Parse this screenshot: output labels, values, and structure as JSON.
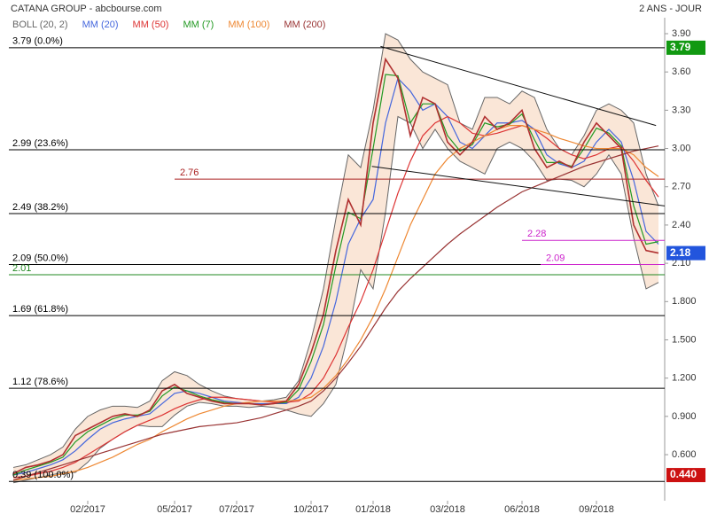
{
  "chart_data": {
    "type": "line",
    "title": "CATANA GROUP - abcbourse.com",
    "subtitle": "2 ANS - JOUR",
    "categories": [
      null,
      null,
      null,
      null,
      null,
      null,
      "02/2017",
      null,
      null,
      null,
      null,
      null,
      null,
      "05/2017",
      null,
      null,
      null,
      null,
      "07/2017",
      null,
      null,
      null,
      null,
      null,
      "10/2017",
      null,
      null,
      null,
      null,
      "01/2018",
      null,
      null,
      null,
      null,
      null,
      "03/2018",
      null,
      null,
      null,
      null,
      null,
      "06/2018",
      null,
      null,
      null,
      null,
      null,
      "09/2018",
      null,
      null,
      null,
      null,
      null
    ],
    "values": [
      0.45,
      0.5,
      0.52,
      0.55,
      0.6,
      0.75,
      0.8,
      0.85,
      0.9,
      0.92,
      0.9,
      0.95,
      1.1,
      1.15,
      1.08,
      1.05,
      1.02,
      1.0,
      1.0,
      1.0,
      0.99,
      1.0,
      1.02,
      1.15,
      1.4,
      1.7,
      2.2,
      2.6,
      2.4,
      3.2,
      3.7,
      3.55,
      3.1,
      3.4,
      3.35,
      3.05,
      2.95,
      3.05,
      3.25,
      3.15,
      3.2,
      3.3,
      3.0,
      2.85,
      2.9,
      2.85,
      3.05,
      3.2,
      3.1,
      3.0,
      2.4,
      2.2,
      2.18
    ],
    "color": "#b03030",
    "series": [
      {
        "name": "BOLL (20, 2)",
        "color": "#666666",
        "values": [
          0.5,
          0.52,
          0.56,
          0.6,
          0.66,
          0.8,
          0.9,
          0.95,
          0.98,
          0.98,
          0.97,
          1.02,
          1.18,
          1.25,
          1.22,
          1.15,
          1.1,
          1.06,
          1.04,
          1.03,
          1.02,
          1.03,
          1.05,
          1.18,
          1.5,
          1.9,
          2.45,
          2.95,
          2.85,
          3.3,
          3.9,
          3.85,
          3.7,
          3.6,
          3.55,
          3.5,
          3.2,
          3.15,
          3.4,
          3.4,
          3.35,
          3.45,
          3.4,
          3.15,
          3.0,
          2.95,
          3.1,
          3.3,
          3.35,
          3.3,
          3.2,
          2.8,
          2.55
        ],
        "lower": [
          0.38,
          0.4,
          0.42,
          0.44,
          0.46,
          0.46,
          0.54,
          0.65,
          0.72,
          0.78,
          0.83,
          0.82,
          0.82,
          0.91,
          0.98,
          1.01,
          1.0,
          0.98,
          0.98,
          0.97,
          0.98,
          0.97,
          0.95,
          0.92,
          0.9,
          1.0,
          1.15,
          1.55,
          2.05,
          1.9,
          2.5,
          3.25,
          3.2,
          3.0,
          3.15,
          3.0,
          2.9,
          2.85,
          2.8,
          3.0,
          3.05,
          3.0,
          2.9,
          2.75,
          2.76,
          2.75,
          2.7,
          2.8,
          2.95,
          2.8,
          2.3,
          1.9,
          1.95
        ]
      },
      {
        "name": "MM (20)",
        "color": "#4466dd",
        "values": [
          0.44,
          0.46,
          0.49,
          0.52,
          0.56,
          0.63,
          0.72,
          0.8,
          0.85,
          0.88,
          0.9,
          0.92,
          1.0,
          1.08,
          1.1,
          1.08,
          1.05,
          1.02,
          1.01,
          1.0,
          1.0,
          1.0,
          1.0,
          1.05,
          1.2,
          1.45,
          1.8,
          2.25,
          2.45,
          2.6,
          3.2,
          3.55,
          3.45,
          3.3,
          3.35,
          3.25,
          3.05,
          3.0,
          3.1,
          3.2,
          3.2,
          3.22,
          3.15,
          2.95,
          2.88,
          2.85,
          2.9,
          3.05,
          3.15,
          3.05,
          2.75,
          2.35,
          2.25
        ]
      },
      {
        "name": "MM (50)",
        "color": "#dd3333",
        "values": [
          0.42,
          0.43,
          0.45,
          0.47,
          0.5,
          0.54,
          0.6,
          0.66,
          0.72,
          0.78,
          0.83,
          0.87,
          0.91,
          0.96,
          1.0,
          1.03,
          1.05,
          1.05,
          1.04,
          1.03,
          1.02,
          1.01,
          1.01,
          1.02,
          1.08,
          1.2,
          1.38,
          1.6,
          1.8,
          2.05,
          2.35,
          2.65,
          2.9,
          3.1,
          3.2,
          3.25,
          3.2,
          3.12,
          3.1,
          3.12,
          3.15,
          3.18,
          3.15,
          3.08,
          3.0,
          2.95,
          2.92,
          2.95,
          3.0,
          3.02,
          2.9,
          2.75,
          2.62
        ]
      },
      {
        "name": "MM (7)",
        "color": "#229922",
        "values": [
          0.44,
          0.48,
          0.51,
          0.54,
          0.58,
          0.7,
          0.78,
          0.83,
          0.88,
          0.91,
          0.91,
          0.94,
          1.06,
          1.13,
          1.1,
          1.06,
          1.03,
          1.01,
          1.0,
          1.0,
          0.99,
          1.0,
          1.01,
          1.11,
          1.33,
          1.62,
          2.08,
          2.5,
          2.45,
          3.0,
          3.58,
          3.57,
          3.2,
          3.35,
          3.35,
          3.1,
          2.98,
          3.03,
          3.2,
          3.17,
          3.19,
          3.27,
          3.07,
          2.89,
          2.89,
          2.86,
          3.0,
          3.16,
          3.12,
          3.02,
          2.55,
          2.25,
          2.27
        ]
      },
      {
        "name": "MM (100)",
        "color": "#ee8833",
        "values": [
          0.4,
          0.41,
          0.42,
          0.43,
          0.45,
          0.47,
          0.5,
          0.54,
          0.58,
          0.63,
          0.68,
          0.72,
          0.78,
          0.83,
          0.88,
          0.92,
          0.95,
          0.98,
          1.0,
          1.01,
          1.02,
          1.02,
          1.02,
          1.03,
          1.05,
          1.12,
          1.22,
          1.35,
          1.5,
          1.68,
          1.9,
          2.15,
          2.4,
          2.6,
          2.8,
          2.92,
          3.0,
          3.05,
          3.1,
          3.15,
          3.18,
          3.18,
          3.15,
          3.12,
          3.08,
          3.05,
          3.02,
          3.0,
          3.0,
          3.0,
          2.95,
          2.85,
          2.78
        ]
      },
      {
        "name": "MM (200)",
        "color": "#993333",
        "values": [
          0.4,
          0.43,
          0.46,
          0.49,
          0.52,
          0.55,
          0.58,
          0.61,
          0.64,
          0.67,
          0.7,
          0.73,
          0.76,
          0.78,
          0.8,
          0.82,
          0.83,
          0.84,
          0.85,
          0.87,
          0.89,
          0.92,
          0.95,
          0.98,
          1.02,
          1.1,
          1.2,
          1.32,
          1.45,
          1.6,
          1.75,
          1.88,
          1.98,
          2.07,
          2.16,
          2.25,
          2.33,
          2.4,
          2.47,
          2.54,
          2.6,
          2.66,
          2.7,
          2.74,
          2.78,
          2.82,
          2.86,
          2.89,
          2.92,
          2.95,
          2.98,
          3.0,
          3.02
        ]
      }
    ],
    "ylim": [
      0.239,
      4.025
    ],
    "yticks": [
      {
        "value": 0.6,
        "label": "0.600"
      },
      {
        "value": 0.9,
        "label": "0.900"
      },
      {
        "value": 1.2,
        "label": "1.200"
      },
      {
        "value": 1.5,
        "label": "1.500"
      },
      {
        "value": 1.8,
        "label": "1.800"
      },
      {
        "value": 2.1,
        "label": "2.10"
      },
      {
        "value": 2.4,
        "label": "2.40"
      },
      {
        "value": 2.7,
        "label": "2.70"
      },
      {
        "value": 3,
        "label": "3.00"
      },
      {
        "value": 3.3,
        "label": "3.30"
      },
      {
        "value": 3.6,
        "label": "3.60"
      },
      {
        "value": 3.9,
        "label": "3.90"
      }
    ],
    "levels": [
      {
        "value": 3.79,
        "label": "3.79  (0.0%)",
        "color": "#000000"
      },
      {
        "value": 2.99,
        "label": "2.99  (23.6%)",
        "color": "#000000"
      },
      {
        "value": 2.49,
        "label": "2.49  (38.2%)",
        "color": "#000000"
      },
      {
        "value": 2.09,
        "label": "2.09  (50.0%)",
        "color": "#000000"
      },
      {
        "value": 1.69,
        "label": "1.69  (61.8%)",
        "color": "#000000"
      },
      {
        "value": 1.12,
        "label": "1.12  (78.6%)",
        "color": "#000000"
      },
      {
        "value": 0.39,
        "label": "0.39  (100.0%)",
        "color": "#000000"
      },
      {
        "value": 2.76,
        "label": "2.76",
        "color": "#aa2222",
        "from": 13
      },
      {
        "value": 2.28,
        "label": "2.28",
        "color": "#cc22cc",
        "from": 41
      },
      {
        "value": 2.09,
        "label": "2.09",
        "color": "#cc22cc",
        "from": 42.5
      },
      {
        "value": 2.01,
        "label": "2.01",
        "color": "#228822"
      }
    ],
    "trendlines": [
      {
        "x": [
          29.6,
          51.8
        ],
        "y": [
          3.8,
          3.18
        ]
      },
      {
        "x": [
          28.9,
          52.5
        ],
        "y": [
          2.86,
          2.55
        ]
      }
    ],
    "tags": [
      {
        "value": 3.79,
        "label": "3.79",
        "color": "#119911"
      },
      {
        "value": 2.18,
        "label": "2.18",
        "color": "#2255dd"
      },
      {
        "value": 0.44,
        "label": "0.440",
        "color": "#cc1111"
      }
    ]
  }
}
